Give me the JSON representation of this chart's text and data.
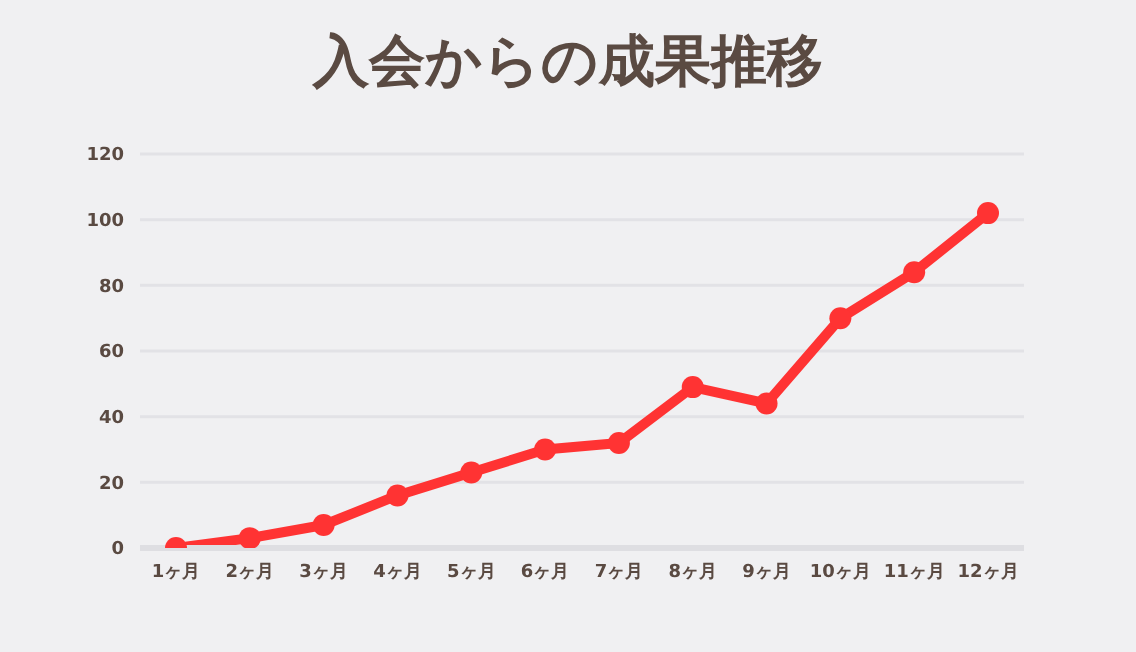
{
  "chart_data": {
    "type": "line",
    "title": "入会からの成果推移",
    "categories": [
      "1ヶ月",
      "2ヶ月",
      "3ヶ月",
      "4ヶ月",
      "5ヶ月",
      "6ヶ月",
      "7ヶ月",
      "8ヶ月",
      "9ヶ月",
      "10ヶ月",
      "11ヶ月",
      "12ヶ月"
    ],
    "series": [
      {
        "color": "#ff3333",
        "values": [
          0,
          3,
          7,
          16,
          23,
          30,
          32,
          49,
          44,
          70,
          84,
          102
        ]
      }
    ],
    "ylim": [
      0,
      120
    ],
    "yticks": [
      0,
      20,
      40,
      60,
      80,
      100,
      120
    ],
    "grid": "y",
    "marker": "circle",
    "line_style": "solid",
    "legend": false
  }
}
